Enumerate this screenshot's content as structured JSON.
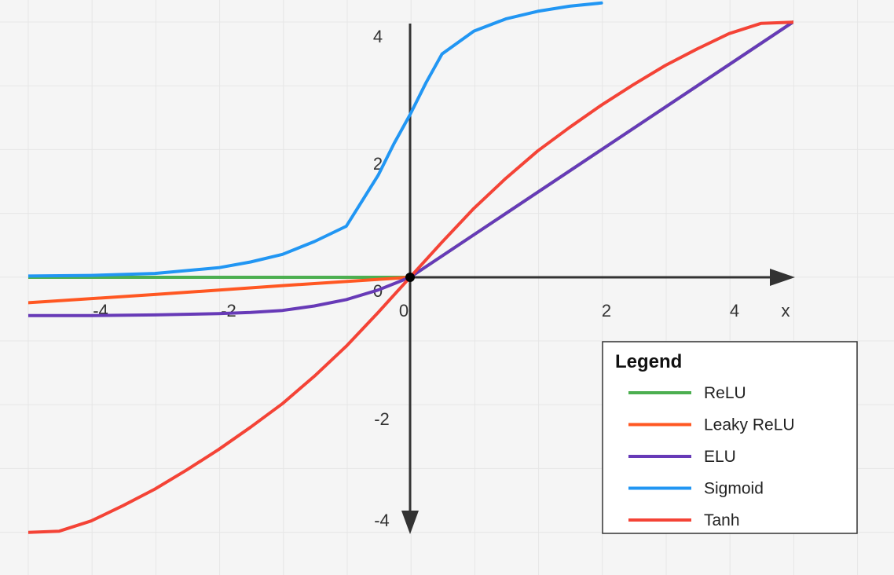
{
  "chart_data": {
    "type": "line",
    "title": "",
    "xlabel": "x",
    "ylabel": "",
    "xlim": [
      -6,
      6
    ],
    "ylim": [
      -4,
      4
    ],
    "grid": true,
    "legend": {
      "title": "Legend",
      "placement": "bottom-right"
    },
    "x_ticks": [
      {
        "value": -4,
        "label": "-4"
      },
      {
        "value": -2,
        "label": "-2"
      },
      {
        "value": 0,
        "label": "0"
      },
      {
        "value": 2,
        "label": "2"
      },
      {
        "value": 4,
        "label": "4"
      }
    ],
    "y_ticks": [
      {
        "value": 4,
        "label": "4"
      },
      {
        "value": 2,
        "label": "2"
      },
      {
        "value": 0,
        "label": "0"
      },
      {
        "value": -2,
        "label": "-2"
      },
      {
        "value": -4,
        "label": "-4"
      }
    ],
    "origin_point": [
      0,
      0
    ],
    "series": [
      {
        "name": "ReLU",
        "color": "#4caf50",
        "x": [
          -6,
          0,
          6
        ],
        "y": [
          0,
          0,
          4
        ]
      },
      {
        "name": "Leaky ReLU",
        "color": "#ff5722",
        "x": [
          -6,
          -4,
          -2,
          0
        ],
        "y": [
          -0.4,
          -0.27,
          -0.13,
          0
        ]
      },
      {
        "name": "ELU",
        "color": "#673ab7",
        "x": [
          -6,
          -5,
          -4,
          -3,
          -2.5,
          -2,
          -1.5,
          -1,
          -0.5,
          0,
          6
        ],
        "y": [
          -0.6,
          -0.6,
          -0.59,
          -0.57,
          -0.55,
          -0.52,
          -0.45,
          -0.35,
          -0.2,
          0,
          4
        ]
      },
      {
        "name": "Sigmoid",
        "color": "#2196f3",
        "x": [
          -6,
          -5,
          -4,
          -3,
          -2.5,
          -2,
          -1.5,
          -1,
          -0.5,
          -0.25,
          0,
          0.25,
          0.5,
          1,
          1.5,
          2,
          2.5,
          3
        ],
        "y": [
          0.02,
          0.03,
          0.06,
          0.15,
          0.24,
          0.36,
          0.56,
          0.8,
          1.6,
          2.1,
          2.55,
          3.05,
          3.5,
          3.86,
          4.05,
          4.17,
          4.25,
          4.3
        ]
      },
      {
        "name": "Tanh",
        "color": "#f44336",
        "x": [
          -6,
          -5.5,
          -5,
          -4.5,
          -4,
          -3.5,
          -3,
          -2.5,
          -2,
          -1.5,
          -1,
          -0.5,
          0,
          0.5,
          1,
          1.5,
          2,
          2.5,
          3,
          3.5,
          4,
          4.5,
          5,
          5.5,
          6
        ],
        "y": [
          -4,
          -3.98,
          -3.82,
          -3.58,
          -3.32,
          -3.02,
          -2.7,
          -2.35,
          -1.98,
          -1.55,
          -1.08,
          -0.55,
          0,
          0.55,
          1.08,
          1.55,
          1.98,
          2.35,
          2.7,
          3.02,
          3.32,
          3.58,
          3.82,
          3.98,
          4
        ]
      }
    ]
  }
}
